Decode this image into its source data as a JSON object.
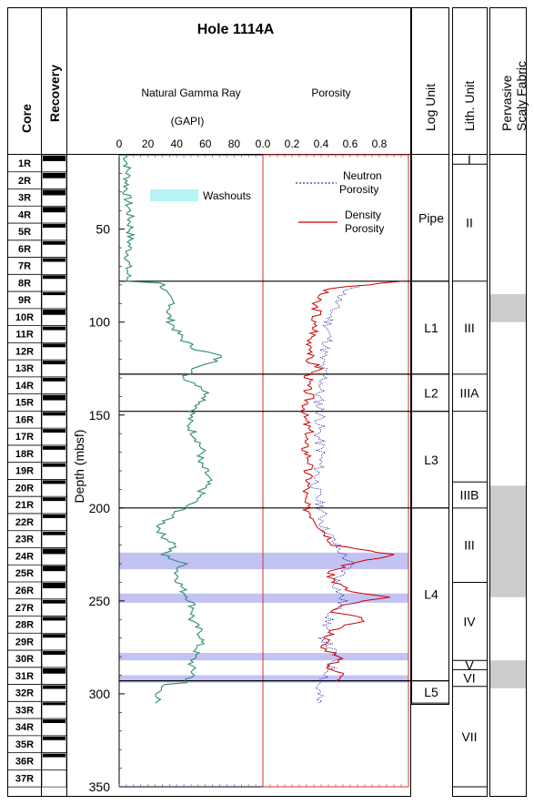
{
  "chart_data": {
    "type": "line",
    "title": "Hole 1114A",
    "columns": {
      "core": "Core",
      "recovery": "Recovery",
      "log_unit": "Log Unit",
      "lith_unit": "Lith. Unit",
      "scaly": "Pervasive Scaly Fabric"
    },
    "depth_axis": {
      "label": "Depth (mbsf)",
      "range": [
        10,
        350
      ],
      "ticks": [
        50,
        100,
        150,
        200,
        250,
        300,
        350
      ]
    },
    "gamma": {
      "label": "Natural Gamma Ray",
      "unit": "(GAPI)",
      "range": [
        0,
        100
      ],
      "ticks": [
        0,
        20,
        40,
        60,
        80
      ],
      "color": "#2e8b6e",
      "profile": [
        [
          10,
          5
        ],
        [
          20,
          6
        ],
        [
          30,
          5
        ],
        [
          40,
          7
        ],
        [
          50,
          8
        ],
        [
          60,
          7
        ],
        [
          70,
          6
        ],
        [
          78,
          6
        ],
        [
          79,
          30
        ],
        [
          85,
          32
        ],
        [
          90,
          38
        ],
        [
          95,
          34
        ],
        [
          100,
          36
        ],
        [
          105,
          40
        ],
        [
          110,
          45
        ],
        [
          115,
          55
        ],
        [
          118,
          70
        ],
        [
          122,
          65
        ],
        [
          126,
          50
        ],
        [
          130,
          45
        ],
        [
          135,
          58
        ],
        [
          140,
          62
        ],
        [
          145,
          55
        ],
        [
          150,
          50
        ],
        [
          155,
          48
        ],
        [
          160,
          52
        ],
        [
          165,
          56
        ],
        [
          170,
          58
        ],
        [
          175,
          55
        ],
        [
          180,
          60
        ],
        [
          185,
          62
        ],
        [
          190,
          58
        ],
        [
          195,
          55
        ],
        [
          200,
          45
        ],
        [
          205,
          35
        ],
        [
          210,
          28
        ],
        [
          215,
          30
        ],
        [
          220,
          40
        ],
        [
          225,
          30
        ],
        [
          230,
          45
        ],
        [
          235,
          40
        ],
        [
          240,
          42
        ],
        [
          245,
          45
        ],
        [
          250,
          50
        ],
        [
          255,
          52
        ],
        [
          260,
          50
        ],
        [
          265,
          55
        ],
        [
          270,
          58
        ],
        [
          275,
          55
        ],
        [
          280,
          52
        ],
        [
          285,
          50
        ],
        [
          290,
          52
        ],
        [
          294,
          45
        ],
        [
          295,
          30
        ],
        [
          300,
          28
        ],
        [
          305,
          25
        ]
      ]
    },
    "porosity": {
      "label": "Porosity",
      "range": [
        0,
        1
      ],
      "ticks": [
        "0.0",
        "0.2",
        "0.4",
        "0.6",
        "0.8"
      ],
      "neutron": {
        "name": "Neutron Porosity",
        "name_lines": [
          "Neutron",
          "Porosity"
        ],
        "color": "#00008b",
        "profile": [
          [
            80,
            0.65
          ],
          [
            85,
            0.55
          ],
          [
            90,
            0.5
          ],
          [
            100,
            0.45
          ],
          [
            110,
            0.45
          ],
          [
            120,
            0.4
          ],
          [
            130,
            0.42
          ],
          [
            140,
            0.38
          ],
          [
            150,
            0.4
          ],
          [
            160,
            0.38
          ],
          [
            170,
            0.4
          ],
          [
            180,
            0.38
          ],
          [
            190,
            0.36
          ],
          [
            200,
            0.4
          ],
          [
            210,
            0.42
          ],
          [
            220,
            0.5
          ],
          [
            230,
            0.6
          ],
          [
            240,
            0.5
          ],
          [
            250,
            0.55
          ],
          [
            260,
            0.45
          ],
          [
            270,
            0.42
          ],
          [
            280,
            0.5
          ],
          [
            290,
            0.45
          ],
          [
            295,
            0.38
          ],
          [
            305,
            0.38
          ]
        ]
      },
      "density": {
        "name": "Density Porosity",
        "name_lines": [
          "Density",
          "Porosity"
        ],
        "color": "#cc0000",
        "profile": [
          [
            78,
            0.98
          ],
          [
            80,
            0.7
          ],
          [
            82,
            0.45
          ],
          [
            85,
            0.4
          ],
          [
            90,
            0.35
          ],
          [
            95,
            0.38
          ],
          [
            100,
            0.34
          ],
          [
            105,
            0.36
          ],
          [
            110,
            0.32
          ],
          [
            115,
            0.35
          ],
          [
            120,
            0.3
          ],
          [
            125,
            0.4
          ],
          [
            128,
            0.32
          ],
          [
            135,
            0.3
          ],
          [
            140,
            0.32
          ],
          [
            145,
            0.3
          ],
          [
            150,
            0.28
          ],
          [
            155,
            0.3
          ],
          [
            160,
            0.32
          ],
          [
            165,
            0.28
          ],
          [
            170,
            0.3
          ],
          [
            175,
            0.33
          ],
          [
            180,
            0.3
          ],
          [
            185,
            0.32
          ],
          [
            190,
            0.3
          ],
          [
            195,
            0.28
          ],
          [
            200,
            0.3
          ],
          [
            205,
            0.35
          ],
          [
            210,
            0.4
          ],
          [
            215,
            0.45
          ],
          [
            220,
            0.5
          ],
          [
            225,
            0.9
          ],
          [
            230,
            0.6
          ],
          [
            235,
            0.45
          ],
          [
            240,
            0.5
          ],
          [
            245,
            0.6
          ],
          [
            248,
            0.85
          ],
          [
            252,
            0.55
          ],
          [
            255,
            0.45
          ],
          [
            260,
            0.7
          ],
          [
            265,
            0.5
          ],
          [
            270,
            0.45
          ],
          [
            275,
            0.4
          ],
          [
            280,
            0.55
          ],
          [
            285,
            0.45
          ],
          [
            290,
            0.55
          ],
          [
            293,
            0.5
          ]
        ]
      }
    },
    "washouts": {
      "label": "Washouts",
      "color": "#bcbcf2",
      "bands": [
        [
          224,
          233
        ],
        [
          246,
          251
        ],
        [
          278,
          282
        ],
        [
          290,
          294
        ]
      ]
    },
    "boundaries": [
      78,
      128,
      148,
      200,
      293
    ],
    "cores": [
      {
        "name": "1R",
        "top": 10,
        "rec": [
          [
            10,
            13
          ]
        ]
      },
      {
        "name": "2R",
        "top": 19,
        "rec": [
          [
            19,
            22
          ]
        ]
      },
      {
        "name": "3R",
        "top": 29,
        "rec": [
          [
            29,
            32
          ]
        ]
      },
      {
        "name": "4R",
        "top": 38,
        "rec": [
          [
            38,
            41
          ]
        ]
      },
      {
        "name": "5R",
        "top": 48,
        "rec": [
          [
            48,
            50
          ]
        ]
      },
      {
        "name": "6R",
        "top": 58,
        "rec": [
          [
            58,
            60
          ]
        ]
      },
      {
        "name": "7R",
        "top": 67,
        "rec": [
          [
            67,
            69
          ]
        ]
      },
      {
        "name": "8R",
        "top": 77,
        "rec": [
          [
            77,
            79
          ]
        ]
      },
      {
        "name": "9R",
        "top": 86,
        "rec": [
          [
            86,
            87
          ]
        ]
      },
      {
        "name": "10R",
        "top": 96,
        "rec": [
          [
            96,
            99
          ]
        ]
      },
      {
        "name": "11R",
        "top": 105,
        "rec": [
          [
            105,
            107
          ]
        ]
      },
      {
        "name": "12R",
        "top": 115,
        "rec": [
          [
            115,
            117
          ]
        ]
      },
      {
        "name": "13R",
        "top": 125,
        "rec": [
          [
            125,
            127
          ]
        ]
      },
      {
        "name": "14R",
        "top": 134,
        "rec": [
          [
            134,
            136
          ]
        ]
      },
      {
        "name": "15R",
        "top": 144,
        "rec": [
          [
            144,
            147
          ]
        ]
      },
      {
        "name": "16R",
        "top": 153,
        "rec": [
          [
            153,
            155
          ]
        ]
      },
      {
        "name": "17R",
        "top": 163,
        "rec": [
          [
            163,
            165
          ]
        ]
      },
      {
        "name": "18R",
        "top": 173,
        "rec": [
          [
            173,
            175
          ]
        ]
      },
      {
        "name": "19R",
        "top": 182,
        "rec": [
          [
            182,
            184
          ]
        ]
      },
      {
        "name": "20R",
        "top": 192,
        "rec": [
          [
            192,
            194
          ]
        ]
      },
      {
        "name": "21R",
        "top": 201,
        "rec": [
          [
            201,
            203
          ]
        ]
      },
      {
        "name": "22R",
        "top": 211,
        "rec": [
          [
            211,
            213
          ]
        ]
      },
      {
        "name": "23R",
        "top": 221,
        "rec": [
          [
            221,
            223
          ]
        ]
      },
      {
        "name": "24R",
        "top": 230,
        "rec": [
          [
            230,
            233
          ]
        ]
      },
      {
        "name": "25R",
        "top": 240,
        "rec": [
          [
            240,
            243
          ]
        ]
      },
      {
        "name": "26R",
        "top": 249,
        "rec": [
          [
            249,
            252
          ]
        ]
      },
      {
        "name": "27R",
        "top": 259,
        "rec": [
          [
            259,
            261
          ]
        ]
      },
      {
        "name": "28R",
        "top": 269,
        "rec": [
          [
            269,
            271
          ]
        ]
      },
      {
        "name": "29R",
        "top": 278,
        "rec": [
          [
            278,
            280
          ]
        ]
      },
      {
        "name": "30R",
        "top": 288,
        "rec": [
          [
            288,
            290
          ]
        ]
      },
      {
        "name": "31R",
        "top": 297,
        "rec": [
          [
            297,
            300
          ]
        ]
      },
      {
        "name": "32R",
        "top": 307,
        "rec": [
          [
            307,
            309
          ]
        ]
      },
      {
        "name": "33R",
        "top": 317,
        "rec": [
          [
            317,
            318
          ]
        ]
      },
      {
        "name": "34R",
        "top": 326,
        "rec": [
          [
            326,
            328
          ]
        ]
      },
      {
        "name": "35R",
        "top": 336,
        "rec": [
          [
            336,
            338
          ]
        ]
      },
      {
        "name": "36R",
        "top": 345,
        "rec": [
          [
            345,
            347
          ]
        ]
      },
      {
        "name": "37R",
        "top": 355,
        "rec": []
      }
    ],
    "log_units": [
      {
        "name": "Pipe",
        "top": 10,
        "bottom": 78
      },
      {
        "name": "L1",
        "top": 78,
        "bottom": 128
      },
      {
        "name": "L2",
        "top": 128,
        "bottom": 148
      },
      {
        "name": "L3",
        "top": 148,
        "bottom": 200
      },
      {
        "name": "L4",
        "top": 200,
        "bottom": 293
      },
      {
        "name": "L5",
        "top": 293,
        "bottom": 305
      }
    ],
    "lith_units": [
      {
        "name": "I",
        "top": 10,
        "bottom": 15
      },
      {
        "name": "II",
        "top": 15,
        "bottom": 78
      },
      {
        "name": "III",
        "top": 78,
        "bottom": 128
      },
      {
        "name": "IIIA",
        "top": 128,
        "bottom": 148
      },
      {
        "name": "",
        "top": 148,
        "bottom": 186
      },
      {
        "name": "IIIB",
        "top": 186,
        "bottom": 200
      },
      {
        "name": "III",
        "top": 200,
        "bottom": 240
      },
      {
        "name": "IV",
        "top": 240,
        "bottom": 282
      },
      {
        "name": "V",
        "top": 282,
        "bottom": 287
      },
      {
        "name": "VI",
        "top": 287,
        "bottom": 296
      },
      {
        "name": "VII",
        "top": 296,
        "bottom": 350
      }
    ],
    "scaly_bands": [
      [
        85,
        100
      ],
      [
        188,
        248
      ],
      [
        282,
        297
      ]
    ],
    "scaly_color": "#cccccc"
  }
}
